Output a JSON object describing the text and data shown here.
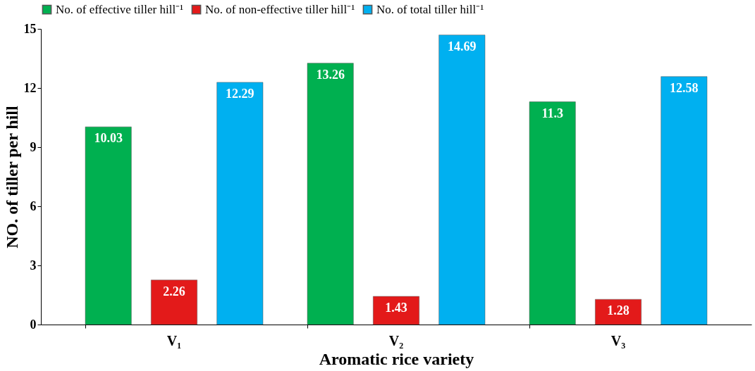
{
  "chart_data": {
    "type": "bar",
    "xlabel": "Aromatic rice variety",
    "ylabel": "NO. of tiller per hill",
    "categories": [
      "V₁",
      "V₂",
      "V₃"
    ],
    "series": [
      {
        "name": "No. of effective tiller hill⁻¹",
        "color": "#00b050",
        "values": [
          10.03,
          13.26,
          11.3
        ]
      },
      {
        "name": "No. of non-effective tiller hill⁻¹",
        "color": "#e31a1a",
        "values": [
          2.26,
          1.43,
          1.28
        ]
      },
      {
        "name": "No. of total tiller hill⁻¹",
        "color": "#00b0f0",
        "values": [
          12.29,
          14.69,
          12.58
        ]
      }
    ],
    "ylim": [
      0,
      15
    ],
    "yticks": [
      0,
      3,
      6,
      9,
      12,
      15
    ],
    "grid": false,
    "legend": "top",
    "data_labels": true
  }
}
